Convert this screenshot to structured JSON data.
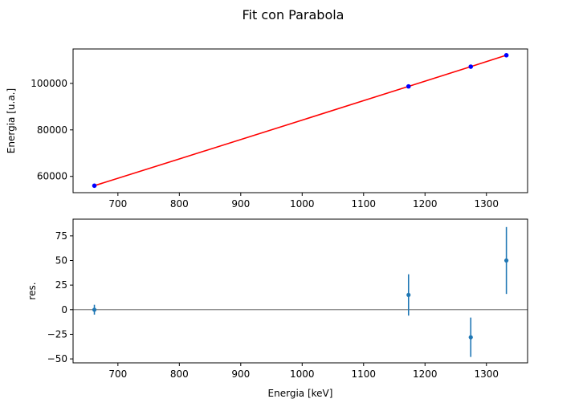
{
  "title": "Fit con Parabola",
  "colors": {
    "data_points": "#0000ff",
    "fit_line": "#ff0000",
    "residuals": "#1f77b4",
    "zero_line": "#555555"
  },
  "chart_data": [
    {
      "type": "scatter",
      "title": "",
      "xlabel": "",
      "ylabel": "Energia [u.a.]",
      "xlim": [
        627,
        1367
      ],
      "ylim": [
        53000,
        114800
      ],
      "xticks": [
        "700",
        "800",
        "900",
        "1000",
        "1100",
        "1200",
        "1300"
      ],
      "yticks": [
        "60000",
        "80000",
        "100000"
      ],
      "ytick_values": [
        60000,
        80000,
        100000
      ],
      "grid": false,
      "series": [
        {
          "kind": "points",
          "color": "#0000ff",
          "x": [
            661.7,
            1173.2,
            1274.5,
            1332.5
          ],
          "y": [
            56000,
            98700,
            107200,
            112100
          ]
        },
        {
          "kind": "fit-line",
          "color": "#ff0000",
          "x": [
            661.7,
            800,
            1000,
            1173.2,
            1274.5,
            1332.5
          ],
          "y": [
            56000,
            67500,
            84200,
            98700,
            107200,
            112100
          ]
        }
      ]
    },
    {
      "type": "scatter",
      "title": "",
      "xlabel": "Energia [keV]",
      "ylabel": "res.",
      "xlim": [
        627,
        1367
      ],
      "ylim": [
        -54,
        92
      ],
      "xticks": [
        "700",
        "800",
        "900",
        "1000",
        "1100",
        "1200",
        "1300"
      ],
      "yticks": [
        "−50",
        "−25",
        "0",
        "25",
        "50",
        "75"
      ],
      "ytick_values": [
        -50,
        -25,
        0,
        25,
        50,
        75
      ],
      "grid": false,
      "hline": 0,
      "series": [
        {
          "kind": "errorbar",
          "color": "#1f77b4",
          "x": [
            661.7,
            1173.2,
            1274.5,
            1332.5
          ],
          "y": [
            0,
            15,
            -28,
            50
          ],
          "yerr": [
            5,
            21,
            20,
            34
          ]
        }
      ]
    }
  ]
}
